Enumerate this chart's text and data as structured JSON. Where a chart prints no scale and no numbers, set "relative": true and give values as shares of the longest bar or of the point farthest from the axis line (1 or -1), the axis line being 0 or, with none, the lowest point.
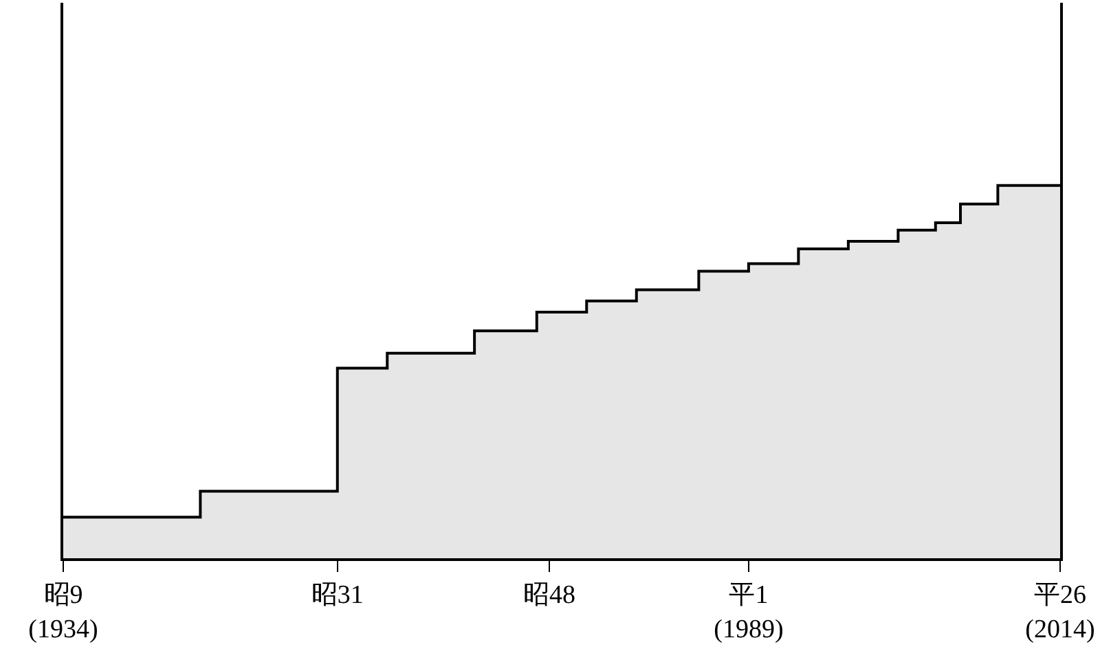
{
  "chart_data": {
    "type": "step",
    "relative": true,
    "categories": [
      "昭9\n(1934)",
      null,
      null,
      null,
      null,
      null,
      null,
      null,
      null,
      null,
      null,
      null,
      null,
      null,
      null,
      null,
      null,
      null,
      null,
      null,
      null,
      null,
      "昭31",
      null,
      null,
      null,
      null,
      null,
      null,
      null,
      null,
      null,
      null,
      null,
      null,
      null,
      null,
      null,
      null,
      "昭48",
      null,
      null,
      null,
      null,
      null,
      null,
      null,
      null,
      null,
      null,
      null,
      null,
      null,
      null,
      null,
      "平1\n(1989)",
      null,
      null,
      null,
      null,
      null,
      null,
      null,
      null,
      null,
      null,
      null,
      null,
      null,
      null,
      null,
      null,
      null,
      null,
      null,
      null,
      null,
      null,
      null,
      null,
      "平26\n(2014)"
    ],
    "series": [
      {
        "type": "area",
        "color": "#e6e6e6",
        "values": [
          0.11,
          0.11,
          0.11,
          0.11,
          0.11,
          0.11,
          0.11,
          0.11,
          0.11,
          0.11,
          0.11,
          0.18,
          0.18,
          0.18,
          0.18,
          0.18,
          0.18,
          0.18,
          0.18,
          0.18,
          0.18,
          0.18,
          0.51,
          0.51,
          0.51,
          0.51,
          0.55,
          0.55,
          0.55,
          0.55,
          0.55,
          0.55,
          0.55,
          0.61,
          0.61,
          0.61,
          0.61,
          0.61,
          0.66,
          0.66,
          0.66,
          0.66,
          0.69,
          0.69,
          0.69,
          0.69,
          0.72,
          0.72,
          0.72,
          0.72,
          0.72,
          0.77,
          0.77,
          0.77,
          0.77,
          0.79,
          0.79,
          0.79,
          0.79,
          0.83,
          0.83,
          0.83,
          0.83,
          0.85,
          0.85,
          0.85,
          0.85,
          0.88,
          0.88,
          0.88,
          0.9,
          0.9,
          0.95,
          0.95,
          0.95,
          1,
          1,
          1,
          1,
          1,
          1
        ]
      },
      {
        "color": "#000000",
        "values": [
          0.11,
          0.11,
          0.11,
          0.11,
          0.11,
          0.11,
          0.11,
          0.11,
          0.11,
          0.11,
          0.11,
          0.18,
          0.18,
          0.18,
          0.18,
          0.18,
          0.18,
          0.18,
          0.18,
          0.18,
          0.18,
          0.18,
          0.51,
          0.51,
          0.51,
          0.51,
          0.55,
          0.55,
          0.55,
          0.55,
          0.55,
          0.55,
          0.55,
          0.61,
          0.61,
          0.61,
          0.61,
          0.61,
          0.66,
          0.66,
          0.66,
          0.66,
          0.69,
          0.69,
          0.69,
          0.69,
          0.72,
          0.72,
          0.72,
          0.72,
          0.72,
          0.77,
          0.77,
          0.77,
          0.77,
          0.79,
          0.79,
          0.79,
          0.79,
          0.83,
          0.83,
          0.83,
          0.83,
          0.85,
          0.85,
          0.85,
          0.85,
          0.88,
          0.88,
          0.88,
          0.9,
          0.9,
          0.95,
          0.95,
          0.95,
          1,
          1,
          1,
          1,
          1,
          1
        ]
      }
    ],
    "line_style": "solid",
    "marker": "none"
  }
}
